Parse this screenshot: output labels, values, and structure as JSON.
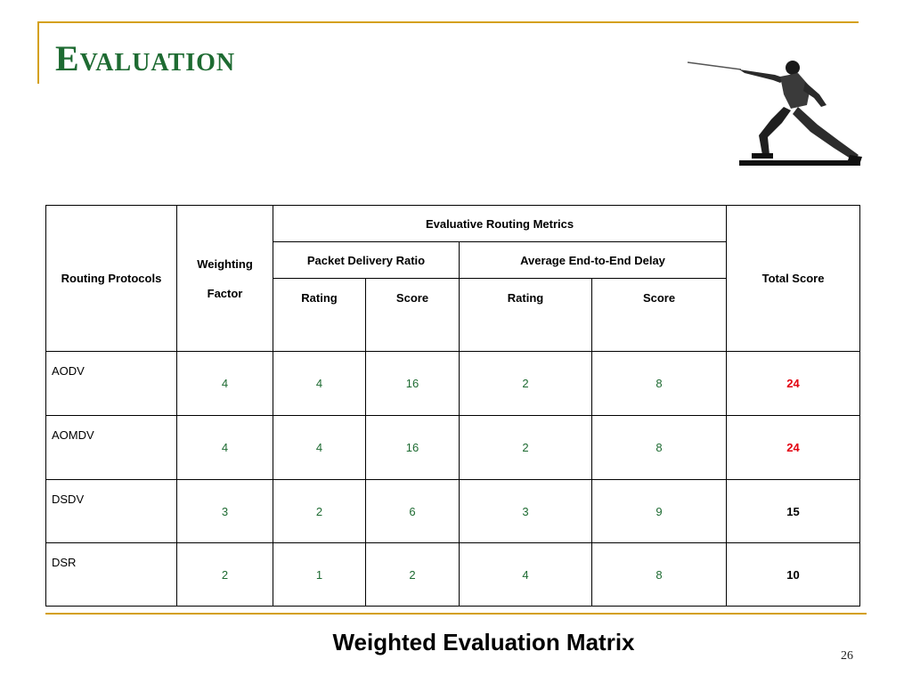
{
  "slide": {
    "title": "Evaluation",
    "caption": "Weighted Evaluation Matrix",
    "page_number": "26",
    "colors": {
      "title": "#1e6b32",
      "frame": "#d4a017",
      "highlight": "#e3000f",
      "values": "#1e6b32"
    },
    "image_icon": "fencer-clipart"
  },
  "table": {
    "header": {
      "protocols": "Routing Protocols",
      "weighting_line1": "Weighting",
      "weighting_line2": "Factor",
      "metrics": "Evaluative Routing Metrics",
      "pdr": "Packet Delivery Ratio",
      "delay": "Average End-to-End Delay",
      "rating1": "Rating",
      "score1": "Score",
      "rating2": "Rating",
      "score2": "Score",
      "total": "Total Score"
    },
    "rows": [
      {
        "protocol": "AODV",
        "weight": "4",
        "pdr_rating": "4",
        "pdr_score": "16",
        "delay_rating": "2",
        "delay_score": "8",
        "total": "24"
      },
      {
        "protocol": "AOMDV",
        "weight": "4",
        "pdr_rating": "4",
        "pdr_score": "16",
        "delay_rating": "2",
        "delay_score": "8",
        "total": "24"
      },
      {
        "protocol": "DSDV",
        "weight": "3",
        "pdr_rating": "2",
        "pdr_score": "6",
        "delay_rating": "3",
        "delay_score": "9",
        "total": "15"
      },
      {
        "protocol": "DSR",
        "weight": "2",
        "pdr_rating": "1",
        "pdr_score": "2",
        "delay_rating": "4",
        "delay_score": "8",
        "total": "10"
      }
    ]
  }
}
